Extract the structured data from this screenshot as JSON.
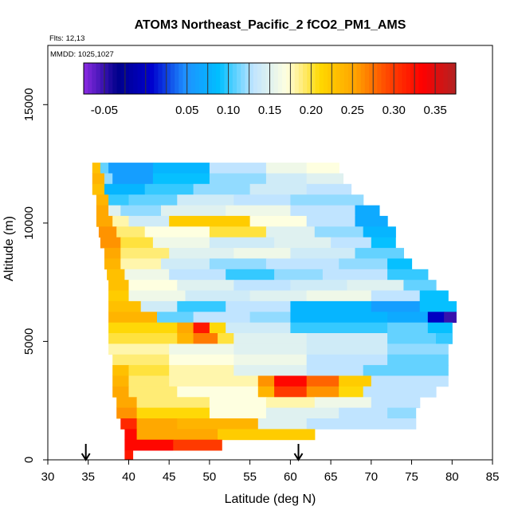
{
  "chart_data": {
    "type": "heatmap",
    "title": "ATOM3 Northeast_Pacific_2 fCO2_PM1_AMS",
    "annotations": [
      "Flts: 12,13",
      "MMDD: 1025,1027"
    ],
    "xlabel": "Latitude (deg N)",
    "ylabel": "Altitude (m)",
    "xlim": [
      30,
      85
    ],
    "ylim": [
      0,
      17500
    ],
    "x_ticks": [
      30,
      35,
      40,
      45,
      50,
      55,
      60,
      65,
      70,
      75,
      80,
      85
    ],
    "y_ticks": [
      0,
      5000,
      10000,
      15000
    ],
    "colorbar": {
      "min": -0.075,
      "max": 0.375,
      "tick_values": [
        -0.05,
        0.05,
        0.1,
        0.15,
        0.2,
        0.25,
        0.3,
        0.35
      ],
      "tick_labels": [
        "-0.05",
        "0.05",
        "0.10",
        "0.15",
        "0.20",
        "0.25",
        "0.30",
        "0.35"
      ],
      "colors": [
        "#8a2be2",
        "#00008b",
        "#0000cd",
        "#1e90ff",
        "#00bfff",
        "#bfe4ff",
        "#ffffe0",
        "#ffd700",
        "#ffa500",
        "#ff4500",
        "#ff0000",
        "#b22222"
      ]
    },
    "arrows_lat": [
      34.7,
      61.0
    ],
    "bands": [
      {
        "alt": [
          12100,
          12550
        ],
        "segs": [
          [
            35.5,
            36.5,
            0.23
          ],
          [
            36.5,
            37.5,
            0.11
          ],
          [
            37.5,
            43,
            0.06
          ],
          [
            43,
            50,
            0.08
          ],
          [
            50,
            57,
            0.13
          ],
          [
            57,
            62,
            0.16
          ],
          [
            62,
            66,
            0.17
          ]
        ]
      },
      {
        "alt": [
          11650,
          12100
        ],
        "segs": [
          [
            35.5,
            37,
            0.24
          ],
          [
            37,
            38,
            0.12
          ],
          [
            38,
            43,
            0.06
          ],
          [
            43,
            50,
            0.09
          ],
          [
            50,
            57,
            0.12
          ],
          [
            57,
            62,
            0.14
          ],
          [
            62,
            66.5,
            0.15
          ]
        ]
      },
      {
        "alt": [
          11200,
          11650
        ],
        "segs": [
          [
            35.5,
            37,
            0.23
          ],
          [
            37,
            42,
            0.08
          ],
          [
            42,
            48,
            0.1
          ],
          [
            48,
            55,
            0.12
          ],
          [
            55,
            62,
            0.14
          ],
          [
            62,
            67.5,
            0.13
          ]
        ]
      },
      {
        "alt": [
          10750,
          11200
        ],
        "segs": [
          [
            36,
            37.5,
            0.24
          ],
          [
            37.5,
            40,
            0.1
          ],
          [
            40,
            46,
            0.11
          ],
          [
            46,
            53,
            0.14
          ],
          [
            53,
            60,
            0.13
          ],
          [
            60,
            69,
            0.12
          ]
        ]
      },
      {
        "alt": [
          10300,
          10750
        ],
        "segs": [
          [
            36,
            37.5,
            0.25
          ],
          [
            37.5,
            39,
            0.15
          ],
          [
            39,
            44,
            0.12
          ],
          [
            44,
            52,
            0.15
          ],
          [
            52,
            60,
            0.16
          ],
          [
            60,
            68,
            0.13
          ],
          [
            68,
            71,
            0.07
          ]
        ]
      },
      {
        "alt": [
          9850,
          10300
        ],
        "segs": [
          [
            36,
            38,
            0.25
          ],
          [
            38,
            40,
            0.18
          ],
          [
            40,
            45,
            0.14
          ],
          [
            45,
            55,
            0.22
          ],
          [
            55,
            62,
            0.17
          ],
          [
            62,
            68,
            0.13
          ],
          [
            68,
            72,
            0.07
          ]
        ]
      },
      {
        "alt": [
          9400,
          9850
        ],
        "segs": [
          [
            36.3,
            38.5,
            0.26
          ],
          [
            38.5,
            42,
            0.19
          ],
          [
            42,
            50,
            0.17
          ],
          [
            50,
            57,
            0.2
          ],
          [
            57,
            63,
            0.15
          ],
          [
            63,
            69,
            0.12
          ],
          [
            69,
            73,
            0.08
          ]
        ]
      },
      {
        "alt": [
          8950,
          9400
        ],
        "segs": [
          [
            36.5,
            39,
            0.26
          ],
          [
            39,
            43,
            0.2
          ],
          [
            43,
            50,
            0.16
          ],
          [
            50,
            58,
            0.14
          ],
          [
            58,
            65,
            0.15
          ],
          [
            65,
            70,
            0.13
          ],
          [
            70,
            73,
            0.09
          ]
        ]
      },
      {
        "alt": [
          8500,
          8950
        ],
        "segs": [
          [
            37,
            39,
            0.25
          ],
          [
            39,
            45,
            0.19
          ],
          [
            45,
            53,
            0.15
          ],
          [
            53,
            60,
            0.16
          ],
          [
            60,
            68,
            0.14
          ],
          [
            68,
            74,
            0.11
          ]
        ]
      },
      {
        "alt": [
          8050,
          8500
        ],
        "segs": [
          [
            37,
            39,
            0.24
          ],
          [
            39,
            44,
            0.18
          ],
          [
            44,
            50,
            0.14
          ],
          [
            50,
            57,
            0.12
          ],
          [
            57,
            66,
            0.13
          ],
          [
            66,
            72,
            0.12
          ],
          [
            72,
            75,
            0.09
          ]
        ]
      },
      {
        "alt": [
          7600,
          8050
        ],
        "segs": [
          [
            37.3,
            39.5,
            0.23
          ],
          [
            39.5,
            45,
            0.16
          ],
          [
            45,
            52,
            0.13
          ],
          [
            52,
            58,
            0.1
          ],
          [
            58,
            64,
            0.12
          ],
          [
            64,
            72,
            0.13
          ],
          [
            72,
            77,
            0.1
          ]
        ]
      },
      {
        "alt": [
          7150,
          7600
        ],
        "segs": [
          [
            37.5,
            40,
            0.23
          ],
          [
            40,
            46,
            0.17
          ],
          [
            46,
            53,
            0.15
          ],
          [
            53,
            60,
            0.13
          ],
          [
            60,
            67,
            0.14
          ],
          [
            67,
            74,
            0.15
          ],
          [
            74,
            78,
            0.11
          ]
        ]
      },
      {
        "alt": [
          6700,
          7150
        ],
        "segs": [
          [
            37.5,
            40,
            0.22
          ],
          [
            40,
            47,
            0.16
          ],
          [
            47,
            55,
            0.14
          ],
          [
            55,
            62,
            0.15
          ],
          [
            62,
            70,
            0.16
          ],
          [
            70,
            76,
            0.13
          ],
          [
            76,
            79.5,
            0.09
          ]
        ]
      },
      {
        "alt": [
          6250,
          6700
        ],
        "segs": [
          [
            37.5,
            41.5,
            0.23
          ],
          [
            41.5,
            46,
            0.14
          ],
          [
            46,
            52,
            0.1
          ],
          [
            52,
            60,
            0.13
          ],
          [
            60,
            70,
            0.08
          ],
          [
            70,
            76,
            0.06
          ],
          [
            76,
            80.5,
            0.09
          ]
        ]
      },
      {
        "alt": [
          5800,
          6250
        ],
        "segs": [
          [
            37.5,
            43.5,
            0.24
          ],
          [
            43.5,
            48,
            0.11
          ],
          [
            48,
            55,
            0.13
          ],
          [
            55,
            60,
            0.12
          ],
          [
            60,
            72,
            0.08
          ],
          [
            72,
            77,
            0.07
          ],
          [
            77,
            79,
            0.0
          ],
          [
            79,
            80.5,
            -0.05
          ]
        ]
      },
      {
        "alt": [
          5350,
          5800
        ],
        "segs": [
          [
            37.5,
            46,
            0.21
          ],
          [
            46,
            48,
            0.25
          ],
          [
            48,
            50,
            0.32
          ],
          [
            50,
            52,
            0.21
          ],
          [
            52,
            60,
            0.14
          ],
          [
            60,
            72,
            0.1
          ],
          [
            72,
            77,
            0.11
          ],
          [
            77,
            80,
            0.09
          ]
        ]
      },
      {
        "alt": [
          4900,
          5350
        ],
        "segs": [
          [
            37.5,
            46,
            0.2
          ],
          [
            46,
            48,
            0.24
          ],
          [
            48,
            51,
            0.27
          ],
          [
            51,
            53,
            0.2
          ],
          [
            53,
            62,
            0.15
          ],
          [
            62,
            72,
            0.14
          ],
          [
            72,
            78,
            0.11
          ],
          [
            78,
            80,
            0.1
          ]
        ]
      },
      {
        "alt": [
          4450,
          4900
        ],
        "segs": [
          [
            37.5,
            45,
            0.18
          ],
          [
            45,
            53,
            0.16
          ],
          [
            53,
            62,
            0.15
          ],
          [
            62,
            72,
            0.14
          ],
          [
            72,
            79.5,
            0.12
          ]
        ]
      },
      {
        "alt": [
          4000,
          4450
        ],
        "segs": [
          [
            38,
            45,
            0.19
          ],
          [
            45,
            53,
            0.17
          ],
          [
            53,
            62,
            0.16
          ],
          [
            62,
            72,
            0.13
          ],
          [
            72,
            79.5,
            0.11
          ]
        ]
      },
      {
        "alt": [
          3550,
          4000
        ],
        "segs": [
          [
            38,
            40,
            0.23
          ],
          [
            40,
            45,
            0.2
          ],
          [
            45,
            53,
            0.18
          ],
          [
            53,
            62,
            0.15
          ],
          [
            62,
            69,
            0.13
          ],
          [
            69,
            79.5,
            0.11
          ]
        ]
      },
      {
        "alt": [
          3100,
          3550
        ],
        "segs": [
          [
            38,
            40,
            0.24
          ],
          [
            40,
            45,
            0.19
          ],
          [
            45,
            56,
            0.18
          ],
          [
            56,
            58,
            0.26
          ],
          [
            58,
            62,
            0.33
          ],
          [
            62,
            66,
            0.28
          ],
          [
            66,
            70,
            0.22
          ],
          [
            70,
            79.5,
            0.13
          ]
        ]
      },
      {
        "alt": [
          2650,
          3100
        ],
        "segs": [
          [
            38,
            40,
            0.25
          ],
          [
            40,
            46,
            0.19
          ],
          [
            46,
            56,
            0.17
          ],
          [
            56,
            58,
            0.24
          ],
          [
            58,
            62,
            0.3
          ],
          [
            62,
            66,
            0.26
          ],
          [
            66,
            69,
            0.21
          ],
          [
            69,
            78,
            0.13
          ]
        ]
      },
      {
        "alt": [
          2200,
          2650
        ],
        "segs": [
          [
            38.5,
            41,
            0.25
          ],
          [
            41,
            50,
            0.19
          ],
          [
            50,
            57,
            0.17
          ],
          [
            57,
            63,
            0.18
          ],
          [
            63,
            70,
            0.16
          ],
          [
            70,
            76,
            0.13
          ]
        ]
      },
      {
        "alt": [
          1750,
          2200
        ],
        "segs": [
          [
            38.5,
            41,
            0.26
          ],
          [
            41,
            50,
            0.21
          ],
          [
            50,
            57,
            0.17
          ],
          [
            57,
            66,
            0.15
          ],
          [
            66,
            72,
            0.13
          ],
          [
            72,
            75.5,
            0.12
          ]
        ]
      },
      {
        "alt": [
          1300,
          1750
        ],
        "segs": [
          [
            39,
            41,
            0.31
          ],
          [
            41,
            46,
            0.25
          ],
          [
            46,
            56,
            0.24
          ],
          [
            56,
            62,
            0.15
          ],
          [
            62,
            75.5,
            0.13
          ]
        ]
      },
      {
        "alt": [
          850,
          1300
        ],
        "segs": [
          [
            39.5,
            41,
            0.33
          ],
          [
            41,
            51,
            0.25
          ],
          [
            51,
            63,
            0.22
          ]
        ]
      },
      {
        "alt": [
          400,
          850
        ],
        "segs": [
          [
            39.5,
            45.5,
            0.33
          ],
          [
            45.5,
            51.5,
            0.3
          ]
        ]
      },
      {
        "alt": [
          0,
          400
        ],
        "segs": [
          [
            39.5,
            40.5,
            0.32
          ]
        ]
      }
    ]
  }
}
